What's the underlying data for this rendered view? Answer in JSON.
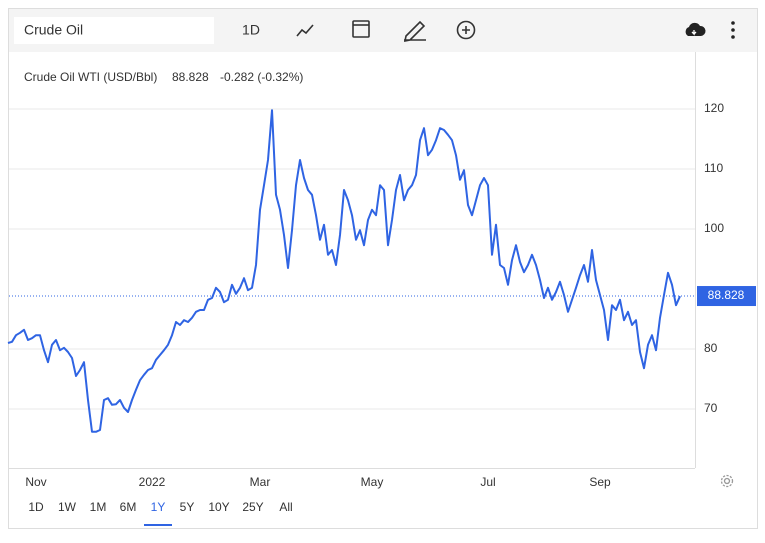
{
  "toolbar": {
    "search": "Crude Oil",
    "interval": "1D"
  },
  "chart_data": {
    "type": "line",
    "title": "Crude Oil WTI (USD/Bbl)",
    "last_value": 88.828,
    "change": "-0.282 (-0.32%)",
    "color": "#2f64e3",
    "change_color": "#e0443e",
    "grid": true,
    "ylim": [
      60,
      130
    ],
    "yticks": [
      70,
      80,
      100,
      110,
      120
    ],
    "categories": [
      null,
      null,
      null,
      null,
      null,
      null,
      null,
      "Nov",
      null,
      null,
      null,
      null,
      null,
      null,
      null,
      null,
      null,
      null,
      null,
      null,
      null,
      null,
      null,
      null,
      null,
      null,
      null,
      null,
      null,
      null,
      null,
      null,
      null,
      null,
      null,
      null,
      "2022",
      null,
      null,
      null,
      null,
      null,
      null,
      null,
      null,
      null,
      null,
      null,
      null,
      null,
      null,
      null,
      null,
      null,
      null,
      null,
      null,
      null,
      null,
      null,
      null,
      null,
      null,
      "Mar",
      null,
      null,
      null,
      null,
      null,
      null,
      null,
      null,
      null,
      null,
      null,
      null,
      null,
      null,
      null,
      null,
      null,
      null,
      null,
      null,
      null,
      null,
      null,
      null,
      null,
      null,
      null,
      "May",
      null,
      null,
      null,
      null,
      null,
      null,
      null,
      null,
      null,
      null,
      null,
      null,
      null,
      null,
      null,
      null,
      null,
      null,
      null,
      null,
      null,
      null,
      null,
      null,
      null,
      null,
      null,
      null,
      "Jul",
      null,
      null,
      null,
      null,
      null,
      null,
      null,
      null,
      null,
      null,
      null,
      null,
      null,
      null,
      null,
      null,
      null,
      null,
      null,
      null,
      null,
      null,
      null,
      null,
      null,
      null,
      null,
      "Sep",
      null,
      null,
      null,
      null,
      null,
      null,
      null,
      null,
      null,
      null,
      null,
      null,
      null,
      null,
      null,
      null,
      null,
      null,
      null,
      null
    ],
    "values": [
      81.0,
      81.2,
      82.3,
      82.7,
      83.2,
      81.5,
      81.8,
      82.3,
      82.3,
      79.8,
      77.8,
      80.7,
      81.5,
      79.8,
      80.2,
      79.5,
      78.5,
      75.5,
      76.5,
      77.8,
      71.5,
      66.2,
      66.2,
      66.5,
      71.5,
      71.8,
      70.7,
      70.8,
      71.5,
      70.2,
      69.5,
      71.5,
      73.2,
      74.8,
      75.7,
      76.5,
      76.8,
      78.2,
      79.0,
      79.8,
      80.7,
      82.3,
      84.5,
      84.0,
      84.8,
      84.5,
      85.2,
      86.2,
      86.5,
      86.5,
      88.2,
      88.5,
      90.2,
      89.5,
      87.8,
      88.2,
      90.7,
      89.2,
      90.2,
      91.8,
      89.8,
      90.2,
      94.0,
      103.2,
      107.3,
      111.5,
      119.8,
      105.7,
      103.2,
      99.0,
      93.5,
      99.8,
      107.3,
      111.5,
      108.5,
      106.5,
      105.7,
      102.3,
      98.2,
      100.7,
      95.7,
      96.5,
      94.0,
      99.0,
      106.5,
      104.8,
      102.3,
      98.2,
      99.8,
      97.3,
      101.5,
      103.2,
      102.3,
      107.3,
      106.5,
      97.3,
      101.5,
      106.5,
      109.0,
      104.8,
      106.5,
      107.3,
      109.0,
      114.8,
      116.8,
      112.3,
      113.2,
      114.8,
      116.8,
      116.5,
      115.7,
      114.8,
      112.3,
      108.2,
      109.8,
      104.0,
      102.3,
      104.8,
      107.3,
      108.5,
      107.3,
      95.7,
      100.7,
      94.0,
      93.5,
      90.7,
      94.8,
      97.3,
      94.5,
      92.8,
      94.0,
      95.7,
      94.0,
      91.5,
      88.5,
      90.2,
      88.2,
      89.5,
      91.2,
      89.0,
      86.2,
      88.2,
      90.2,
      92.3,
      94.0,
      91.2,
      96.5,
      91.5,
      89.0,
      86.5,
      81.5,
      87.3,
      86.5,
      88.2,
      84.8,
      86.2,
      84.0,
      84.8,
      79.5,
      76.8,
      80.7,
      82.3,
      79.8,
      85.2,
      89.0,
      92.7,
      90.7,
      87.3,
      88.8
    ]
  },
  "ranges": {
    "items": [
      "1D",
      "1W",
      "1M",
      "6M",
      "1Y",
      "5Y",
      "10Y",
      "25Y",
      "All"
    ],
    "selected": 4
  }
}
